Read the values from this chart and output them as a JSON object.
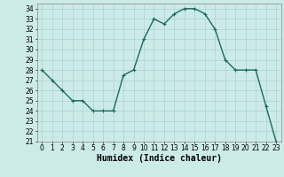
{
  "x": [
    0,
    1,
    2,
    3,
    4,
    5,
    6,
    7,
    8,
    9,
    10,
    11,
    12,
    13,
    14,
    15,
    16,
    17,
    18,
    19,
    20,
    21,
    22,
    23
  ],
  "y": [
    28,
    27,
    26,
    25,
    25,
    24,
    24,
    24,
    27.5,
    28,
    31,
    33,
    32.5,
    33.5,
    34,
    34,
    33.5,
    32,
    29,
    28,
    28,
    28,
    24.5,
    21
  ],
  "line_color": "#1a6b5a",
  "marker": "+",
  "marker_size": 3,
  "bg_color": "#cceae8",
  "grid_color": "#aad4d0",
  "xlabel": "Humidex (Indice chaleur)",
  "xlim": [
    -0.5,
    23.5
  ],
  "ylim": [
    21,
    34.5
  ],
  "yticks": [
    21,
    22,
    23,
    24,
    25,
    26,
    27,
    28,
    29,
    30,
    31,
    32,
    33,
    34
  ],
  "xticks": [
    0,
    1,
    2,
    3,
    4,
    5,
    6,
    7,
    8,
    9,
    10,
    11,
    12,
    13,
    14,
    15,
    16,
    17,
    18,
    19,
    20,
    21,
    22,
    23
  ],
  "tick_fontsize": 5.5,
  "xlabel_fontsize": 7,
  "line_width": 1.0
}
